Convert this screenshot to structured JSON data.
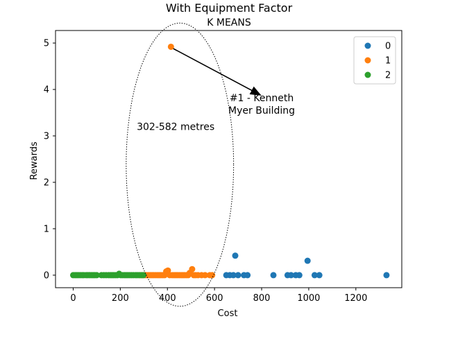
{
  "chart_data": {
    "type": "scatter",
    "title": "With Equipment Factor",
    "subtitle": "K MEANS",
    "xlabel": "Cost",
    "ylabel": "Rewards",
    "xlim": [
      -75,
      1395
    ],
    "ylim": [
      -0.27,
      5.27
    ],
    "xticks": [
      0,
      200,
      400,
      600,
      800,
      1000,
      1200
    ],
    "yticks": [
      0,
      1,
      2,
      3,
      4,
      5
    ],
    "grid": false,
    "legend_position": "top-right",
    "series": [
      {
        "name": "0",
        "color": "#1f77b4",
        "points": [
          [
            650,
            0
          ],
          [
            665,
            0
          ],
          [
            680,
            0
          ],
          [
            688,
            0.42
          ],
          [
            700,
            0
          ],
          [
            725,
            0
          ],
          [
            740,
            0
          ],
          [
            850,
            0
          ],
          [
            910,
            0
          ],
          [
            925,
            0
          ],
          [
            945,
            0
          ],
          [
            960,
            0
          ],
          [
            995,
            0.31
          ],
          [
            1025,
            0
          ],
          [
            1045,
            0
          ],
          [
            1330,
            0
          ]
        ]
      },
      {
        "name": "1",
        "color": "#ff7f0e",
        "points": [
          [
            285,
            0
          ],
          [
            295,
            0
          ],
          [
            305,
            0
          ],
          [
            312,
            0
          ],
          [
            320,
            0
          ],
          [
            328,
            0
          ],
          [
            335,
            0
          ],
          [
            342,
            0
          ],
          [
            350,
            0
          ],
          [
            358,
            0
          ],
          [
            365,
            0
          ],
          [
            372,
            0
          ],
          [
            380,
            0
          ],
          [
            388,
            0
          ],
          [
            395,
            0.08
          ],
          [
            402,
            0.1
          ],
          [
            410,
            0
          ],
          [
            415,
            4.92
          ],
          [
            420,
            0
          ],
          [
            428,
            0
          ],
          [
            435,
            0
          ],
          [
            442,
            0
          ],
          [
            450,
            0
          ],
          [
            458,
            0
          ],
          [
            465,
            0
          ],
          [
            472,
            0
          ],
          [
            480,
            0
          ],
          [
            488,
            0
          ],
          [
            495,
            0.05
          ],
          [
            505,
            0.13
          ],
          [
            512,
            0
          ],
          [
            520,
            0
          ],
          [
            530,
            0
          ],
          [
            545,
            0
          ],
          [
            560,
            0
          ],
          [
            580,
            0
          ],
          [
            590,
            0
          ]
        ]
      },
      {
        "name": "2",
        "color": "#2ca02c",
        "points": [
          [
            0,
            0
          ],
          [
            8,
            0
          ],
          [
            15,
            0
          ],
          [
            22,
            0
          ],
          [
            30,
            0
          ],
          [
            38,
            0
          ],
          [
            45,
            0
          ],
          [
            55,
            0
          ],
          [
            62,
            0
          ],
          [
            70,
            0
          ],
          [
            78,
            0
          ],
          [
            85,
            0
          ],
          [
            92,
            0
          ],
          [
            100,
            0
          ],
          [
            120,
            0
          ],
          [
            130,
            0
          ],
          [
            140,
            0
          ],
          [
            150,
            0
          ],
          [
            158,
            0
          ],
          [
            165,
            0
          ],
          [
            172,
            0
          ],
          [
            180,
            0
          ],
          [
            188,
            0
          ],
          [
            195,
            0.03
          ],
          [
            202,
            0
          ],
          [
            210,
            0
          ],
          [
            218,
            0
          ],
          [
            225,
            0
          ],
          [
            232,
            0
          ],
          [
            240,
            0
          ],
          [
            248,
            0
          ],
          [
            256,
            0
          ],
          [
            265,
            0
          ],
          [
            272,
            0
          ],
          [
            280,
            0
          ],
          [
            290,
            0
          ],
          [
            298,
            0
          ]
        ]
      }
    ],
    "annotations": [
      {
        "text_lines": [
          "#1 - Kenneth",
          "Myer Building"
        ],
        "text_at": [
          800,
          3.75
        ],
        "arrow_from": [
          425,
          4.88
        ],
        "arrow_to": [
          795,
          3.88
        ]
      },
      {
        "text_lines": [
          "302-582 metres"
        ],
        "text_at": [
          435,
          3.13
        ]
      }
    ],
    "highlight_ellipse": {
      "center": [
        453,
        2.38
      ],
      "x_radius": 228,
      "y_radius": 3.05,
      "style": "dotted"
    }
  }
}
